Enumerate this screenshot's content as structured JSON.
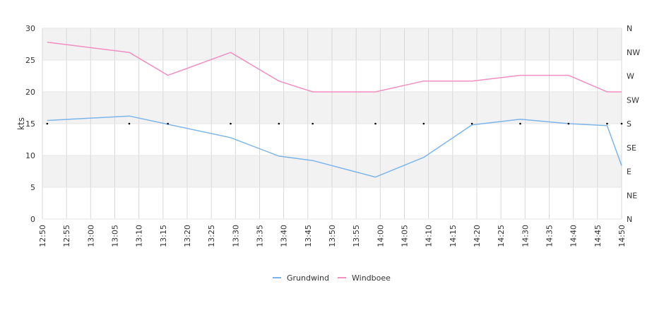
{
  "chart_data": {
    "type": "line",
    "ylabel": "kts",
    "ylim": [
      0,
      30
    ],
    "y_ticks": [
      "0",
      "5",
      "10",
      "15",
      "20",
      "25",
      "30"
    ],
    "x_ticks": [
      "12:50",
      "12:55",
      "13:00",
      "13:05",
      "13:10",
      "13:15",
      "13:20",
      "13:25",
      "13:30",
      "13:35",
      "13:40",
      "13:45",
      "13:50",
      "13:55",
      "14:00",
      "14:05",
      "14:10",
      "14:15",
      "14:20",
      "14:25",
      "14:30",
      "14:35",
      "14:40",
      "14:45",
      "14:50"
    ],
    "xlim": [
      "12:50",
      "14:50"
    ],
    "direction_axis_labels": [
      "N",
      "NE",
      "E",
      "SE",
      "S",
      "SW",
      "W",
      "NW",
      "N"
    ],
    "grid": true,
    "legend_position": "bottom",
    "series": [
      {
        "name": "Grundwind",
        "color": "#7cb5ec",
        "points": [
          [
            "12:51",
            15.5
          ],
          [
            "13:08",
            16.2
          ],
          [
            "13:16",
            14.9
          ],
          [
            "13:29",
            12.8
          ],
          [
            "13:39",
            9.9
          ],
          [
            "13:46",
            9.2
          ],
          [
            "13:59",
            6.6
          ],
          [
            "14:09",
            9.7
          ],
          [
            "14:19",
            14.8
          ],
          [
            "14:29",
            15.7
          ],
          [
            "14:39",
            15.0
          ],
          [
            "14:47",
            14.7
          ],
          [
            "14:50",
            8.4
          ]
        ]
      },
      {
        "name": "Windboee",
        "color": "#f28fc0",
        "points": [
          [
            "12:51",
            27.8
          ],
          [
            "13:08",
            26.2
          ],
          [
            "13:16",
            22.6
          ],
          [
            "13:29",
            26.2
          ],
          [
            "13:39",
            21.7
          ],
          [
            "13:46",
            20.0
          ],
          [
            "13:59",
            20.0
          ],
          [
            "14:09",
            21.7
          ],
          [
            "14:19",
            21.7
          ],
          [
            "14:29",
            22.6
          ],
          [
            "14:39",
            22.6
          ],
          [
            "14:47",
            20.0
          ],
          [
            "14:50",
            20.0
          ]
        ]
      }
    ],
    "direction_markers": {
      "label": "S",
      "times": [
        "12:51",
        "13:08",
        "13:16",
        "13:29",
        "13:39",
        "13:46",
        "13:59",
        "14:09",
        "14:19",
        "14:29",
        "14:39",
        "14:47",
        "14:50"
      ]
    }
  }
}
